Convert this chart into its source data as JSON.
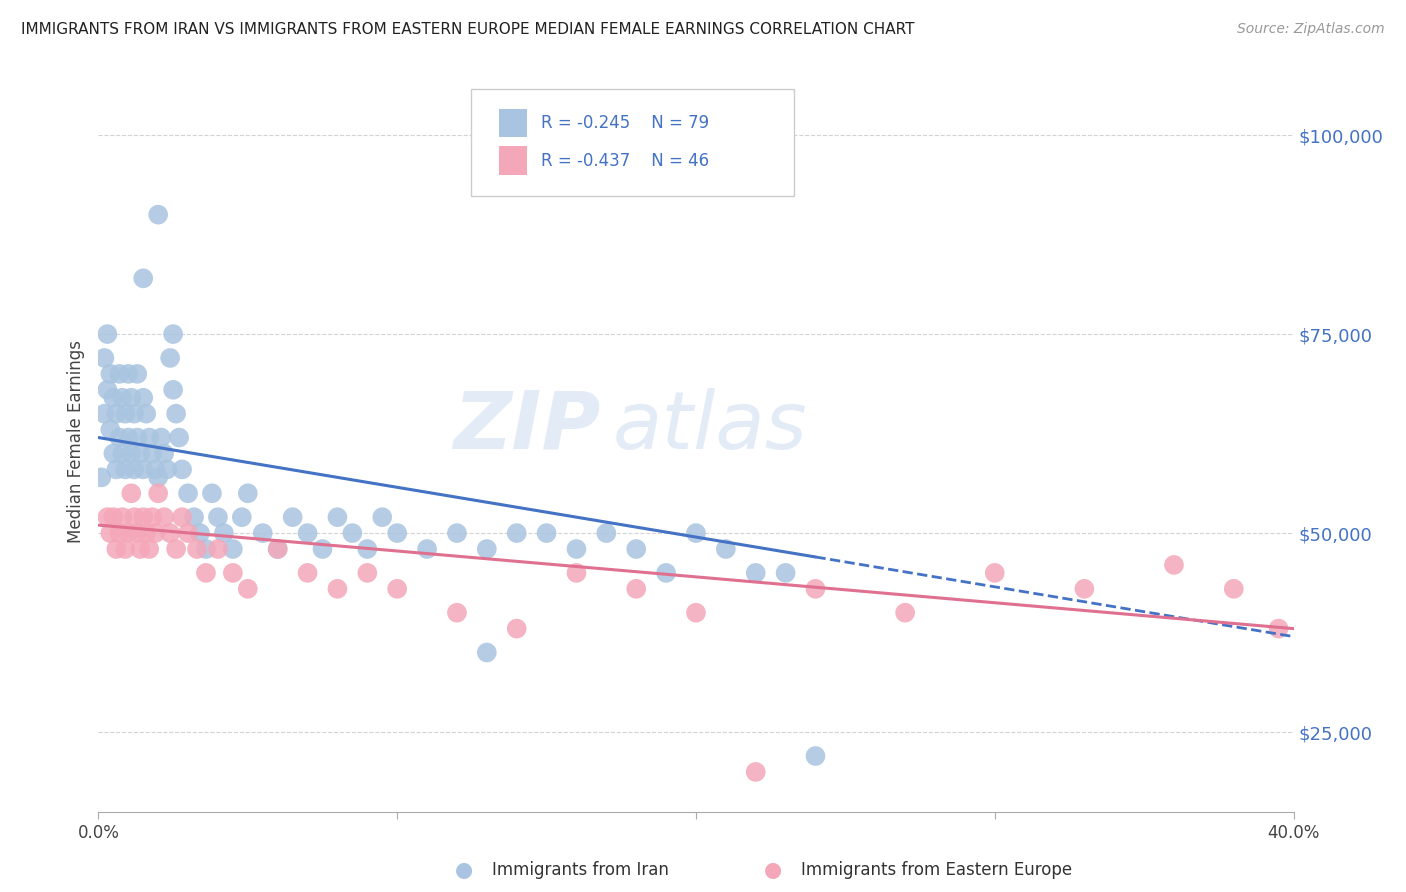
{
  "title": "IMMIGRANTS FROM IRAN VS IMMIGRANTS FROM EASTERN EUROPE MEDIAN FEMALE EARNINGS CORRELATION CHART",
  "source": "Source: ZipAtlas.com",
  "ylabel": "Median Female Earnings",
  "xlim": [
    0.0,
    0.4
  ],
  "ylim": [
    15000,
    108000
  ],
  "yticks": [
    25000,
    50000,
    75000,
    100000
  ],
  "ytick_labels": [
    "$25,000",
    "$50,000",
    "$75,000",
    "$100,000"
  ],
  "xticks": [
    0.0,
    0.1,
    0.2,
    0.3,
    0.4
  ],
  "xtick_labels": [
    "0.0%",
    "",
    "",
    "",
    "40.0%"
  ],
  "legend_r1": "R = -0.245",
  "legend_n1": "N = 79",
  "legend_r2": "R = -0.437",
  "legend_n2": "N = 46",
  "color_iran": "#a8c4e0",
  "color_ee": "#f4a7b9",
  "line_color_iran": "#4472c4",
  "line_color_ee": "#e07090",
  "text_color": "#4472c4",
  "watermark_zip": "ZIP",
  "watermark_atlas": "atlas",
  "background_color": "#ffffff",
  "grid_color": "#d3d3d3",
  "iran_x": [
    0.001,
    0.002,
    0.002,
    0.003,
    0.003,
    0.004,
    0.004,
    0.005,
    0.005,
    0.006,
    0.006,
    0.007,
    0.007,
    0.008,
    0.008,
    0.009,
    0.009,
    0.01,
    0.01,
    0.011,
    0.011,
    0.012,
    0.012,
    0.013,
    0.013,
    0.014,
    0.015,
    0.015,
    0.016,
    0.017,
    0.018,
    0.019,
    0.02,
    0.021,
    0.022,
    0.023,
    0.024,
    0.025,
    0.026,
    0.027,
    0.028,
    0.03,
    0.032,
    0.034,
    0.036,
    0.038,
    0.04,
    0.042,
    0.045,
    0.048,
    0.05,
    0.055,
    0.06,
    0.065,
    0.07,
    0.075,
    0.08,
    0.085,
    0.09,
    0.095,
    0.1,
    0.11,
    0.12,
    0.13,
    0.14,
    0.15,
    0.16,
    0.17,
    0.18,
    0.19,
    0.2,
    0.21,
    0.22,
    0.23,
    0.24,
    0.015,
    0.02,
    0.025,
    0.13
  ],
  "iran_y": [
    57000,
    65000,
    72000,
    68000,
    75000,
    63000,
    70000,
    60000,
    67000,
    58000,
    65000,
    62000,
    70000,
    60000,
    67000,
    58000,
    65000,
    62000,
    70000,
    60000,
    67000,
    58000,
    65000,
    62000,
    70000,
    60000,
    67000,
    58000,
    65000,
    62000,
    60000,
    58000,
    90000,
    62000,
    60000,
    58000,
    72000,
    68000,
    65000,
    62000,
    58000,
    55000,
    52000,
    50000,
    48000,
    55000,
    52000,
    50000,
    48000,
    52000,
    55000,
    50000,
    48000,
    52000,
    50000,
    48000,
    52000,
    50000,
    48000,
    52000,
    50000,
    48000,
    50000,
    48000,
    50000,
    50000,
    48000,
    50000,
    48000,
    45000,
    50000,
    48000,
    45000,
    45000,
    22000,
    82000,
    57000,
    75000,
    35000
  ],
  "ee_x": [
    0.003,
    0.004,
    0.005,
    0.006,
    0.007,
    0.008,
    0.009,
    0.01,
    0.011,
    0.012,
    0.013,
    0.014,
    0.015,
    0.016,
    0.017,
    0.018,
    0.019,
    0.02,
    0.022,
    0.024,
    0.026,
    0.028,
    0.03,
    0.033,
    0.036,
    0.04,
    0.045,
    0.05,
    0.06,
    0.07,
    0.08,
    0.09,
    0.1,
    0.12,
    0.14,
    0.16,
    0.18,
    0.2,
    0.22,
    0.24,
    0.27,
    0.3,
    0.33,
    0.36,
    0.38,
    0.395
  ],
  "ee_y": [
    52000,
    50000,
    52000,
    48000,
    50000,
    52000,
    48000,
    50000,
    55000,
    52000,
    50000,
    48000,
    52000,
    50000,
    48000,
    52000,
    50000,
    55000,
    52000,
    50000,
    48000,
    52000,
    50000,
    48000,
    45000,
    48000,
    45000,
    43000,
    48000,
    45000,
    43000,
    45000,
    43000,
    40000,
    38000,
    45000,
    43000,
    40000,
    20000,
    43000,
    40000,
    45000,
    43000,
    46000,
    43000,
    38000
  ],
  "iran_line_x0": 0.0,
  "iran_line_x1": 0.24,
  "iran_line_y0": 62000,
  "iran_line_y1": 47000,
  "ee_line_x0": 0.0,
  "ee_line_x1": 0.4,
  "ee_line_y0": 51000,
  "ee_line_y1": 38000
}
